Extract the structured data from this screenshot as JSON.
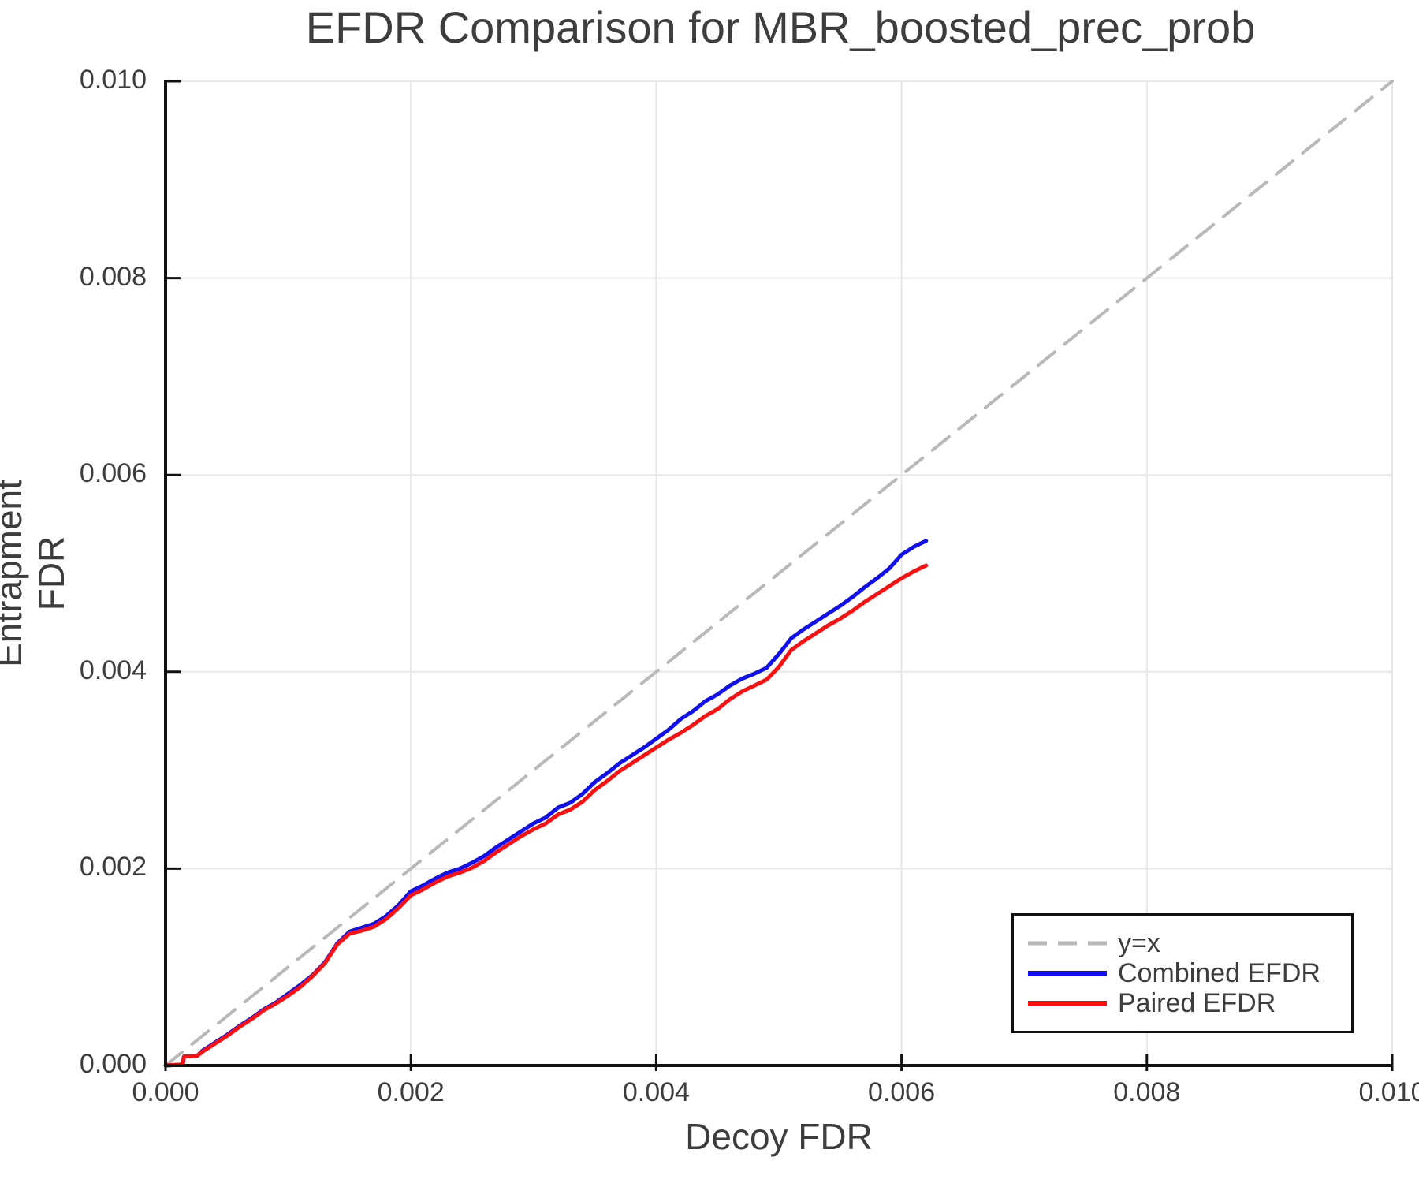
{
  "title": "EFDR Comparison for MBR_boosted_prec_prob",
  "legend": {
    "items": [
      {
        "label": "y=x"
      },
      {
        "label": "Combined EFDR"
      },
      {
        "label": "Paired EFDR"
      }
    ]
  },
  "colors": {
    "text": "#3d3d3d",
    "grid": "#e7e7e7",
    "spine": "#111111",
    "identity_line": "#b9b9b9",
    "combined_efdr": "#0f0ff0",
    "paired_efdr": "#fa1010",
    "legend_border": "#111111",
    "background": "#ffffff"
  },
  "chart_data": {
    "type": "line",
    "title": "EFDR Comparison for MBR_boosted_prec_prob",
    "xlabel": "Decoy FDR",
    "ylabel": "Entrapment FDR",
    "xlim": [
      0.0,
      0.01
    ],
    "ylim": [
      0.0,
      0.01
    ],
    "grid": true,
    "legend_position": "lower right",
    "xticks": [
      "0.000",
      "0.002",
      "0.004",
      "0.006",
      "0.008",
      "0.010"
    ],
    "yticks": [
      "0.000",
      "0.002",
      "0.004",
      "0.006",
      "0.008",
      "0.010"
    ],
    "series": [
      {
        "name": "y=x",
        "color": "#b9b9b9",
        "style": "dashed",
        "width": 4,
        "dash": "27 16",
        "x": [
          0.0,
          0.01
        ],
        "y": [
          0.0,
          0.01
        ]
      },
      {
        "name": "Combined EFDR",
        "color": "#0f0ff0",
        "style": "solid",
        "width": 5,
        "dash": "",
        "x": [
          0,
          0.00014,
          0.00015,
          0.00026,
          0.0003,
          0.0004,
          0.0005,
          0.0006,
          0.0007,
          0.0008,
          0.0009,
          0.001,
          0.0011,
          0.0012,
          0.0013,
          0.0014,
          0.0015,
          0.0016,
          0.0017,
          0.0018,
          0.0019,
          0.002,
          0.0021,
          0.0022,
          0.0023,
          0.0024,
          0.0025,
          0.0026,
          0.0027,
          0.0028,
          0.0029,
          0.003,
          0.0031,
          0.0032,
          0.0033,
          0.0034,
          0.0035,
          0.0036,
          0.0037,
          0.0038,
          0.0039,
          0.004,
          0.0041,
          0.0042,
          0.0043,
          0.0044,
          0.0045,
          0.0046,
          0.0047,
          0.0048,
          0.0049,
          0.005,
          0.0051,
          0.0052,
          0.0053,
          0.0054,
          0.0055,
          0.0056,
          0.0057,
          0.0058,
          0.0059,
          0.006,
          0.0061,
          0.0062
        ],
        "y": [
          0,
          1e-05,
          9e-05,
          0.0001,
          0.00015,
          0.00023,
          0.00031,
          0.0004,
          0.00048,
          0.00057,
          0.00064,
          0.00073,
          0.00082,
          0.00092,
          0.00105,
          0.00124,
          0.00136,
          0.0014,
          0.00144,
          0.00152,
          0.00163,
          0.00177,
          0.00183,
          0.0019,
          0.00196,
          0.002,
          0.00206,
          0.00213,
          0.00222,
          0.0023,
          0.00238,
          0.00246,
          0.00252,
          0.00262,
          0.00267,
          0.00276,
          0.00288,
          0.00297,
          0.00307,
          0.00315,
          0.00323,
          0.00332,
          0.00341,
          0.00352,
          0.0036,
          0.0037,
          0.00377,
          0.00386,
          0.00393,
          0.00398,
          0.00404,
          0.00418,
          0.00434,
          0.00443,
          0.00451,
          0.00459,
          0.00467,
          0.00476,
          0.00486,
          0.00495,
          0.00505,
          0.00519,
          0.00527,
          0.00533
        ]
      },
      {
        "name": "Paired EFDR",
        "color": "#fa1010",
        "style": "solid",
        "width": 5,
        "dash": "",
        "x": [
          0,
          0.00014,
          0.00015,
          0.00026,
          0.0003,
          0.0004,
          0.0005,
          0.0006,
          0.0007,
          0.0008,
          0.0009,
          0.001,
          0.0011,
          0.0012,
          0.0013,
          0.0014,
          0.0015,
          0.0016,
          0.0017,
          0.0018,
          0.0019,
          0.002,
          0.0021,
          0.0022,
          0.0023,
          0.0024,
          0.0025,
          0.0026,
          0.0027,
          0.0028,
          0.0029,
          0.003,
          0.0031,
          0.0032,
          0.0033,
          0.0034,
          0.0035,
          0.0036,
          0.0037,
          0.0038,
          0.0039,
          0.004,
          0.0041,
          0.0042,
          0.0043,
          0.0044,
          0.0045,
          0.0046,
          0.0047,
          0.0048,
          0.0049,
          0.005,
          0.0051,
          0.0052,
          0.0053,
          0.0054,
          0.0055,
          0.0056,
          0.0057,
          0.0058,
          0.0059,
          0.006,
          0.0061,
          0.0062
        ],
        "y": [
          0,
          1e-05,
          9e-05,
          0.0001,
          0.00014,
          0.00022,
          0.0003,
          0.00039,
          0.00047,
          0.00056,
          0.00063,
          0.00071,
          0.0008,
          0.00091,
          0.00104,
          0.00123,
          0.00134,
          0.00137,
          0.00141,
          0.00149,
          0.0016,
          0.00173,
          0.00179,
          0.00186,
          0.00192,
          0.00196,
          0.00201,
          0.00208,
          0.00217,
          0.00225,
          0.00233,
          0.0024,
          0.00246,
          0.00255,
          0.0026,
          0.00268,
          0.0028,
          0.00289,
          0.00299,
          0.00307,
          0.00315,
          0.00323,
          0.00331,
          0.00338,
          0.00346,
          0.00355,
          0.00362,
          0.00372,
          0.0038,
          0.00386,
          0.00392,
          0.00405,
          0.00422,
          0.00431,
          0.00439,
          0.00447,
          0.00454,
          0.00462,
          0.00471,
          0.00479,
          0.00487,
          0.00495,
          0.00502,
          0.00508
        ]
      }
    ]
  }
}
